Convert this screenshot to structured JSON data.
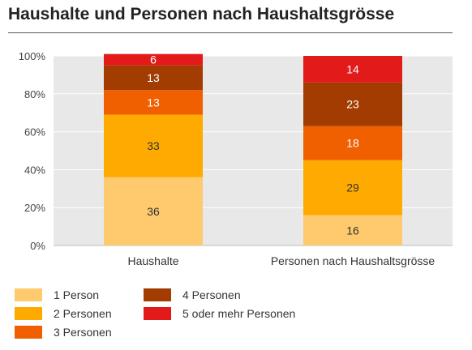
{
  "title": "Haushalte und Personen nach Haushaltsgrösse",
  "chart_data": {
    "type": "bar",
    "stacked": true,
    "categories": [
      "Haushalte",
      "Personen nach Haushaltsgrösse"
    ],
    "series": [
      {
        "name": "1 Person",
        "values": [
          36,
          16
        ],
        "color": "#FFCA6E"
      },
      {
        "name": "2 Personen",
        "values": [
          33,
          29
        ],
        "color": "#FFAA00"
      },
      {
        "name": "3 Personen",
        "values": [
          13,
          18
        ],
        "color": "#F06000"
      },
      {
        "name": "4 Personen",
        "values": [
          13,
          23
        ],
        "color": "#A33C00"
      },
      {
        "name": "5 oder mehr Personen",
        "values": [
          6,
          14
        ],
        "color": "#E31A1A"
      }
    ],
    "ylim": [
      0,
      100
    ],
    "yticks": [
      "0%",
      "20%",
      "40%",
      "60%",
      "80%",
      "100%"
    ],
    "ytick_values": [
      0,
      20,
      40,
      60,
      80,
      100
    ],
    "grid": true,
    "legend_position": "bottom",
    "plot_background": "#E8E8E8"
  }
}
